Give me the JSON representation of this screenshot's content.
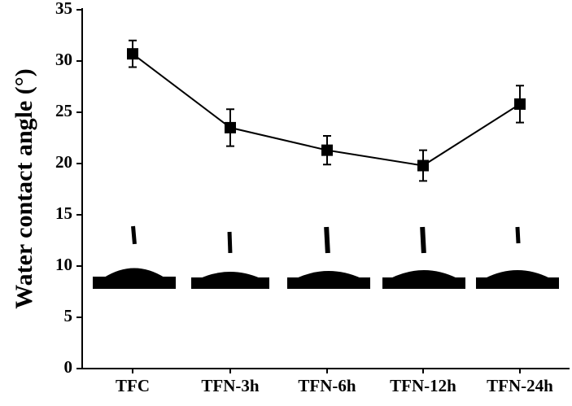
{
  "chart_data": {
    "type": "line",
    "y_label": "Water contact angle (°)",
    "categories": [
      "TFC",
      "TFN-3h",
      "TFN-6h",
      "TFN-12h",
      "TFN-24h"
    ],
    "values": [
      30.7,
      23.5,
      21.3,
      19.8,
      25.8
    ],
    "errors": [
      1.3,
      1.8,
      1.4,
      1.5,
      1.8
    ],
    "color": "#000000",
    "ylim": [
      0,
      35
    ],
    "yticks": [
      0,
      5,
      10,
      15,
      20,
      25,
      30,
      35
    ]
  }
}
